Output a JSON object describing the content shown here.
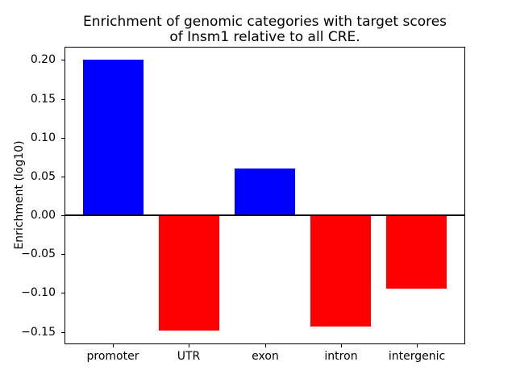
{
  "chart_data": {
    "type": "bar",
    "title": "Enrichment of genomic categories with target scores\nof Insm1 relative to all CRE.",
    "title_lines": [
      "Enrichment of genomic categories with target scores",
      "of Insm1 relative to all CRE."
    ],
    "xlabel": "",
    "ylabel": "Enrichment (log10)",
    "categories": [
      "promoter",
      "UTR",
      "exon",
      "intron",
      "intergenic"
    ],
    "values": [
      0.2,
      -0.148,
      0.06,
      -0.143,
      -0.094
    ],
    "bar_colors": [
      "#0000ff",
      "#ff0000",
      "#0000ff",
      "#ff0000",
      "#ff0000"
    ],
    "positive_color": "#0000ff",
    "negative_color": "#ff0000",
    "axis_color": "#000000",
    "background_color": "#ffffff",
    "ylim": [
      -0.166,
      0.217
    ],
    "yticks": [
      0.2,
      0.15,
      0.1,
      0.05,
      0.0,
      -0.05,
      -0.1,
      -0.15
    ],
    "ytick_labels": [
      "0.20",
      "0.15",
      "0.10",
      "0.05",
      "0.00",
      "−0.05",
      "−0.10",
      "−0.15"
    ],
    "bar_width_fraction": 0.8,
    "grid": false,
    "legend": false,
    "zero_line": true
  }
}
